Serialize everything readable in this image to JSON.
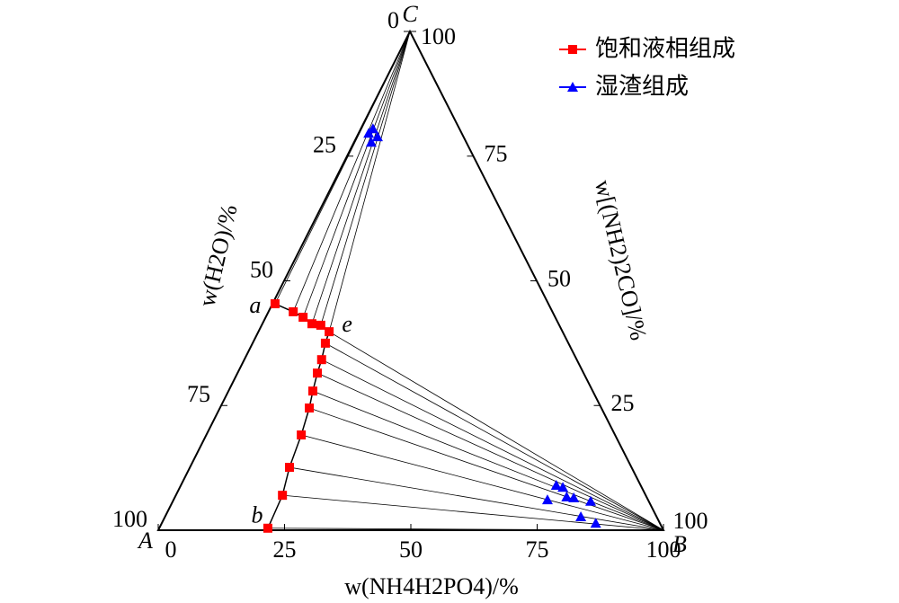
{
  "chart_data": {
    "type": "ternary",
    "vertex_labels": [
      "A",
      "B",
      "C"
    ],
    "bottom_axis": {
      "label": "w(NH4H2PO4)/%",
      "ticks": [
        0,
        25,
        50,
        75,
        100
      ]
    },
    "left_axis": {
      "label": "w(H2O)/%",
      "ticks": [
        0,
        25,
        50,
        75,
        100
      ]
    },
    "right_axis": {
      "label": "w[(NH2)2CO]/%",
      "ticks": [
        25,
        50,
        75,
        100
      ]
    },
    "annotations": [
      "a",
      "e",
      "b",
      "100"
    ],
    "series": [
      {
        "name": "饱和液相组成",
        "color": "#ff0000",
        "marker": "square",
        "x": [
          0.5,
          4.9,
          7.4,
          9.8,
          11.7,
          14.0,
          14.4,
          15.3,
          15.8,
          16.7,
          17.7,
          18.8,
          19.7,
          21.1,
          21.5
        ],
        "values": [
          45.4,
          43.8,
          42.7,
          41.4,
          41.1,
          39.8,
          37.5,
          34.2,
          31.5,
          27.9,
          24.5,
          19.1,
          12.6,
          7.0,
          0.4
        ]
      },
      {
        "name": "湿渣组成",
        "color": "#0000ff",
        "marker": "triangle",
        "x": [
          2.0,
          2.4,
          4.1,
          3.4,
          74.3,
          75.8,
          77.5,
          79.0,
          74.0,
          82.7,
          82.3,
          85.9
        ],
        "values": [
          79.6,
          80.5,
          78.9,
          77.8,
          9.0,
          8.6,
          6.7,
          6.5,
          6.1,
          5.8,
          2.7,
          1.4
        ]
      }
    ]
  }
}
